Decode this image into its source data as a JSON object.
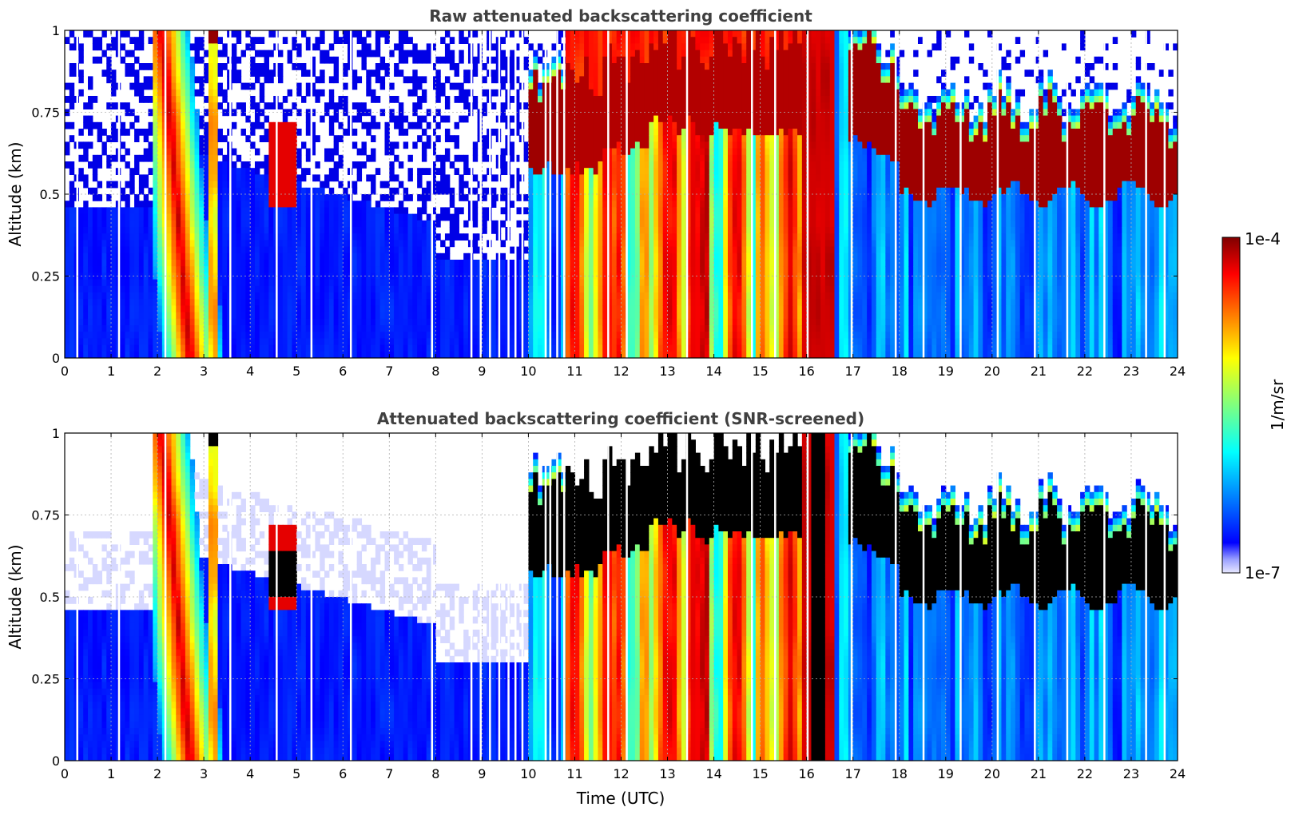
{
  "chart_data": [
    {
      "type": "heatmap",
      "title": "Raw attenuated backscattering coefficient",
      "xlabel": "",
      "ylabel": "Altitude (km)",
      "xlim": [
        0,
        24
      ],
      "ylim": [
        0,
        1
      ],
      "xticks": [
        "0",
        "1",
        "2",
        "3",
        "4",
        "5",
        "6",
        "7",
        "8",
        "9",
        "10",
        "11",
        "12",
        "13",
        "14",
        "15",
        "16",
        "17",
        "18",
        "19",
        "20",
        "21",
        "22",
        "23",
        "24"
      ],
      "yticks": [
        "0",
        "0.25",
        "0.5",
        "0.75",
        "1"
      ],
      "grid": true,
      "screened": false
    },
    {
      "type": "heatmap",
      "title": "Attenuated backscattering coefficient (SNR-screened)",
      "xlabel": "Time (UTC)",
      "ylabel": "Altitude (km)",
      "xlim": [
        0,
        24
      ],
      "ylim": [
        0,
        1
      ],
      "xticks": [
        "0",
        "1",
        "2",
        "3",
        "4",
        "5",
        "6",
        "7",
        "8",
        "9",
        "10",
        "11",
        "12",
        "13",
        "14",
        "15",
        "16",
        "17",
        "18",
        "19",
        "20",
        "21",
        "22",
        "23",
        "24"
      ],
      "yticks": [
        "0",
        "0.25",
        "0.5",
        "0.75",
        "1"
      ],
      "grid": true,
      "screened": true
    }
  ],
  "colorbar": {
    "label": "1/m/sr",
    "min_label": "1e-7",
    "max_label": "1e-4",
    "colormap": "jet",
    "scale": "log",
    "range": [
      1e-07,
      0.0001
    ]
  },
  "colors": {
    "title_color": "#404040",
    "text_color": "#000000",
    "grid_color": "#b0b0b0",
    "jet_low": "#00008f",
    "jet_high": "#800000"
  }
}
